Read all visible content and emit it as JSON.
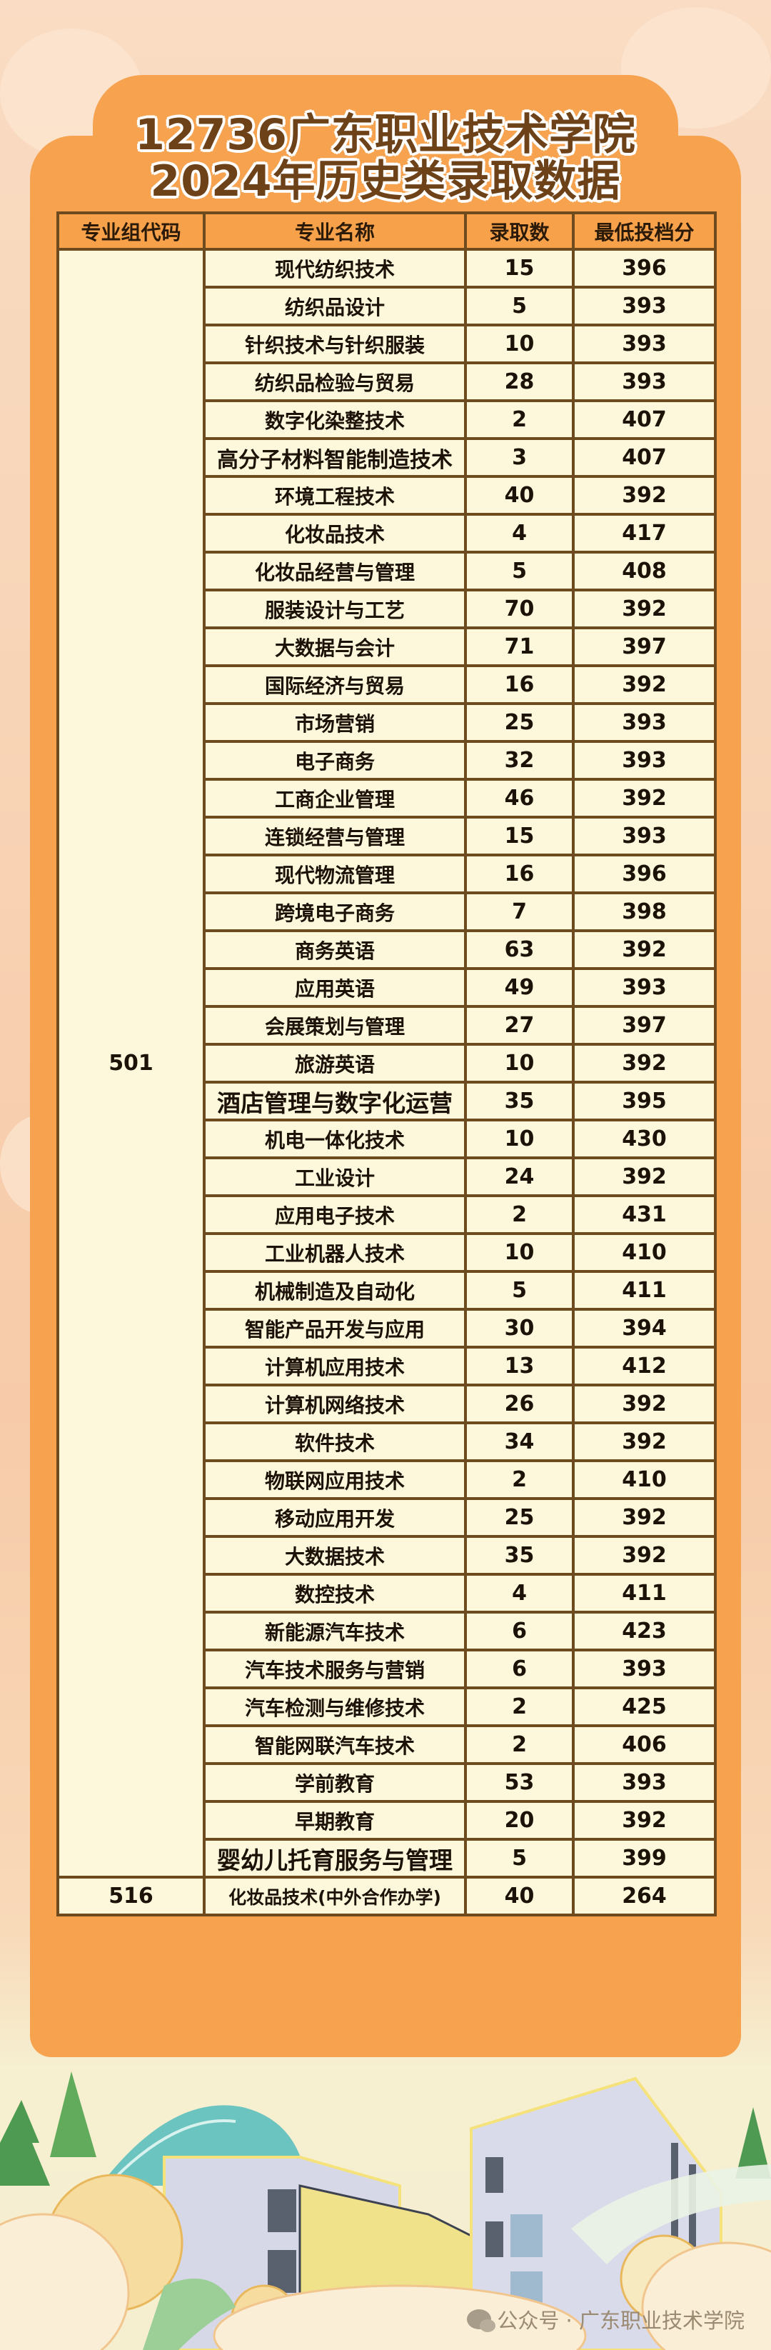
{
  "title": {
    "line1": "12736广东职业技术学院",
    "line2": "2024年历史类录取数据"
  },
  "table": {
    "headers": [
      "专业组代码",
      "专业名称",
      "录取数",
      "最低投档分"
    ],
    "groups": [
      {
        "code": "501",
        "rows": [
          {
            "name": "现代纺织技术",
            "count": "15",
            "score": "396"
          },
          {
            "name": "纺织品设计",
            "count": "5",
            "score": "393"
          },
          {
            "name": "针织技术与针织服装",
            "count": "10",
            "score": "393"
          },
          {
            "name": "纺织品检验与贸易",
            "count": "28",
            "score": "393"
          },
          {
            "name": "数字化染整技术",
            "count": "2",
            "score": "407"
          },
          {
            "name": "高分子材料智能制造技术",
            "count": "3",
            "score": "407"
          },
          {
            "name": "环境工程技术",
            "count": "40",
            "score": "392"
          },
          {
            "name": "化妆品技术",
            "count": "4",
            "score": "417"
          },
          {
            "name": "化妆品经营与管理",
            "count": "5",
            "score": "408"
          },
          {
            "name": "服装设计与工艺",
            "count": "70",
            "score": "392"
          },
          {
            "name": "大数据与会计",
            "count": "71",
            "score": "397"
          },
          {
            "name": "国际经济与贸易",
            "count": "16",
            "score": "392"
          },
          {
            "name": "市场营销",
            "count": "25",
            "score": "393"
          },
          {
            "name": "电子商务",
            "count": "32",
            "score": "393"
          },
          {
            "name": "工商企业管理",
            "count": "46",
            "score": "392"
          },
          {
            "name": "连锁经营与管理",
            "count": "15",
            "score": "393"
          },
          {
            "name": "现代物流管理",
            "count": "16",
            "score": "396"
          },
          {
            "name": "跨境电子商务",
            "count": "7",
            "score": "398"
          },
          {
            "name": "商务英语",
            "count": "63",
            "score": "392"
          },
          {
            "name": "应用英语",
            "count": "49",
            "score": "393"
          },
          {
            "name": "会展策划与管理",
            "count": "27",
            "score": "397"
          },
          {
            "name": "旅游英语",
            "count": "10",
            "score": "392"
          },
          {
            "name": "酒店管理与数字化运营",
            "count": "35",
            "score": "395"
          },
          {
            "name": "机电一体化技术",
            "count": "10",
            "score": "430"
          },
          {
            "name": "工业设计",
            "count": "24",
            "score": "392"
          },
          {
            "name": "应用电子技术",
            "count": "2",
            "score": "431"
          },
          {
            "name": "工业机器人技术",
            "count": "10",
            "score": "410"
          },
          {
            "name": "机械制造及自动化",
            "count": "5",
            "score": "411"
          },
          {
            "name": "智能产品开发与应用",
            "count": "30",
            "score": "394"
          },
          {
            "name": "计算机应用技术",
            "count": "13",
            "score": "412"
          },
          {
            "name": "计算机网络技术",
            "count": "26",
            "score": "392"
          },
          {
            "name": "软件技术",
            "count": "34",
            "score": "392"
          },
          {
            "name": "物联网应用技术",
            "count": "2",
            "score": "410"
          },
          {
            "name": "移动应用开发",
            "count": "25",
            "score": "392"
          },
          {
            "name": "大数据技术",
            "count": "35",
            "score": "392"
          },
          {
            "name": "数控技术",
            "count": "4",
            "score": "411"
          },
          {
            "name": "新能源汽车技术",
            "count": "6",
            "score": "423"
          },
          {
            "name": "汽车技术服务与营销",
            "count": "6",
            "score": "393"
          },
          {
            "name": "汽车检测与维修技术",
            "count": "2",
            "score": "425"
          },
          {
            "name": "智能网联汽车技术",
            "count": "2",
            "score": "406"
          },
          {
            "name": "学前教育",
            "count": "53",
            "score": "393"
          },
          {
            "name": "早期教育",
            "count": "20",
            "score": "392"
          },
          {
            "name": "婴幼儿托育服务与管理",
            "count": "5",
            "score": "399"
          }
        ]
      },
      {
        "code": "516",
        "rows": [
          {
            "name": "化妆品技术(中外合作办学)",
            "count": "40",
            "score": "264"
          }
        ]
      }
    ]
  },
  "watermark": {
    "icon": "wechat-icon",
    "text": "公众号 · 广东职业技术学院"
  },
  "colors": {
    "card": "#f6a24f",
    "header_cell": "#f7a24a",
    "border": "#6e4a1f",
    "cell": "#fdf8dc",
    "title": "#6e4219"
  }
}
